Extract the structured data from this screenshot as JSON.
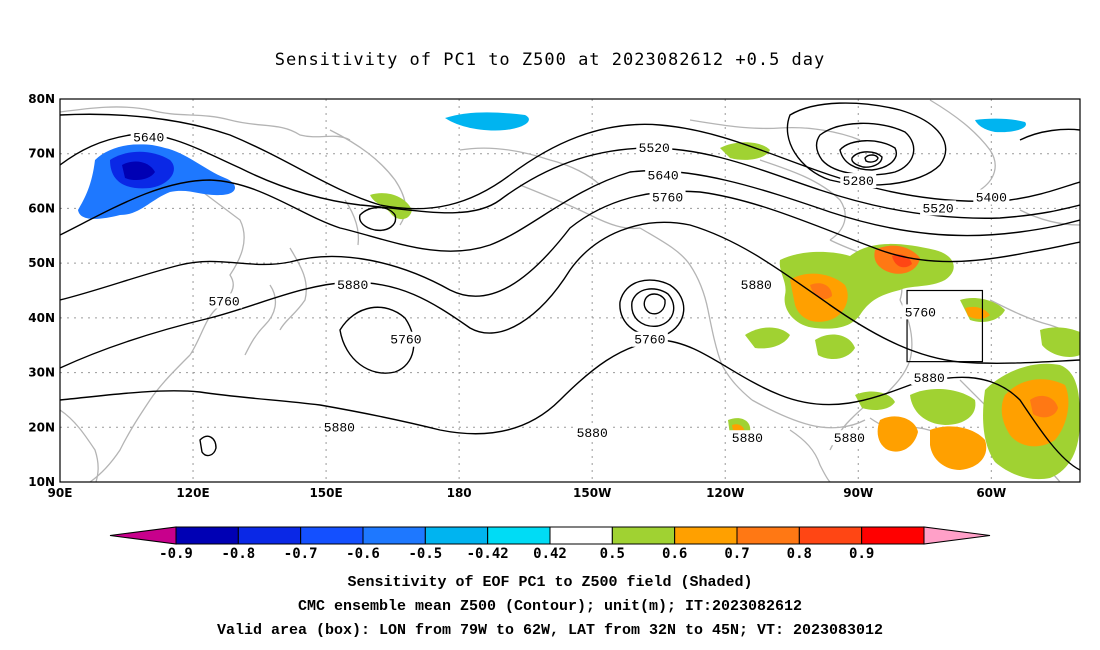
{
  "title": "Sensitivity of PC1 to Z500 at 2023082612 +0.5 day",
  "map": {
    "lat_labels": [
      "80N",
      "70N",
      "60N",
      "50N",
      "40N",
      "30N",
      "20N",
      "10N"
    ],
    "lon_labels": [
      "90E",
      "120E",
      "150E",
      "180",
      "150W",
      "120W",
      "90W",
      "60W"
    ],
    "contour_labels": [
      {
        "text": "5640",
        "lon": 110,
        "lat": 73
      },
      {
        "text": "5520",
        "lon": -136,
        "lat": 71
      },
      {
        "text": "5640",
        "lon": -134,
        "lat": 66
      },
      {
        "text": "5760",
        "lon": -133,
        "lat": 62
      },
      {
        "text": "5280",
        "lon": -90,
        "lat": 65
      },
      {
        "text": "5400",
        "lon": -60,
        "lat": 62
      },
      {
        "text": "5520",
        "lon": -72,
        "lat": 60
      },
      {
        "text": "5880",
        "lon": 156,
        "lat": 46
      },
      {
        "text": "5760",
        "lon": 127,
        "lat": 43
      },
      {
        "text": "5880",
        "lon": -113,
        "lat": 46
      },
      {
        "text": "5760",
        "lon": -76,
        "lat": 41
      },
      {
        "text": "5760",
        "lon": 168,
        "lat": 36
      },
      {
        "text": "5760",
        "lon": -137,
        "lat": 36
      },
      {
        "text": "5880",
        "lon": -74,
        "lat": 29
      },
      {
        "text": "5880",
        "lon": 153,
        "lat": 20
      },
      {
        "text": "5880",
        "lon": -150,
        "lat": 19
      },
      {
        "text": "5880",
        "lon": -115,
        "lat": 18
      },
      {
        "text": "5880",
        "lon": -92,
        "lat": 18
      }
    ],
    "valid_box": {
      "lon_min": -79,
      "lon_max": -62,
      "lat_min": 32,
      "lat_max": 45
    }
  },
  "colorbar": {
    "labels": [
      "-0.9",
      "-0.8",
      "-0.7",
      "-0.6",
      "-0.5",
      "-0.42",
      "0.42",
      "0.5",
      "0.6",
      "0.7",
      "0.8",
      "0.9"
    ],
    "colors": [
      "#c8008c",
      "#0000b4",
      "#0a28e6",
      "#1450ff",
      "#1e78ff",
      "#00b4f0",
      "#00dcf5",
      "#ffffff",
      "#a0d232",
      "#ffa000",
      "#ff7814",
      "#ff4614",
      "#ff0000",
      "#ffa0c8"
    ]
  },
  "captions": [
    "Sensitivity of EOF PC1 to Z500 field (Shaded)",
    "CMC ensemble mean Z500 (Contour); unit(m); IT:2023082612",
    "Valid area (box): LON from 79W to 62W, LAT from 32N to 45N; VT: 2023083012"
  ]
}
